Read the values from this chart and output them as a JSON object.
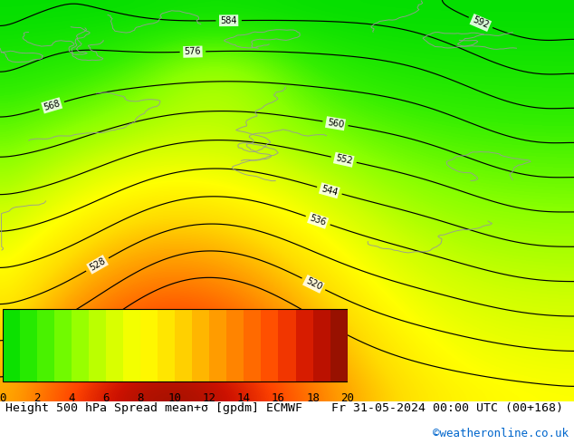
{
  "title_text": "Height 500 hPa Spread mean+σ [gpdm] ECMWF    Fr 31-05-2024 00:00 UTC (00+168)",
  "watermark": "©weatheronline.co.uk",
  "colorbar_ticks": [
    0,
    2,
    4,
    6,
    8,
    10,
    12,
    14,
    16,
    18,
    20
  ],
  "contour_color": "black",
  "title_fontsize": 9.5,
  "watermark_color": "#0066cc",
  "cbar_label_fontsize": 9,
  "fig_width": 6.34,
  "fig_height": 4.9,
  "dpi": 100,
  "cmap_nodes": [
    [
      0.0,
      "#00dd00"
    ],
    [
      0.1,
      "#33ee00"
    ],
    [
      0.2,
      "#88ff00"
    ],
    [
      0.3,
      "#ccff00"
    ],
    [
      0.4,
      "#ffff00"
    ],
    [
      0.5,
      "#ffdd00"
    ],
    [
      0.6,
      "#ffaa00"
    ],
    [
      0.7,
      "#ff7700"
    ],
    [
      0.8,
      "#ff4400"
    ],
    [
      0.9,
      "#cc1100"
    ],
    [
      1.0,
      "#881100"
    ]
  ]
}
